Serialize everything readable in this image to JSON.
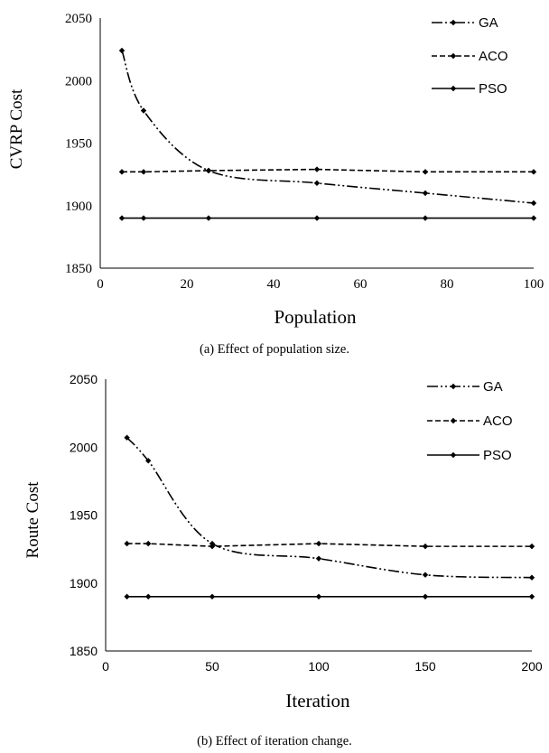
{
  "chart_data": [
    {
      "type": "line",
      "ylabel": "CVRP Cost",
      "xlabel": "Population",
      "caption": "(a) Effect of population size.",
      "xlim": [
        0,
        100
      ],
      "ylim": [
        1850,
        2050
      ],
      "xticks": [
        0,
        20,
        40,
        60,
        80,
        100
      ],
      "yticks": [
        1850,
        1900,
        1950,
        2000,
        2050
      ],
      "legend_position": "top-right",
      "series": [
        {
          "name": "GA",
          "style": "dash-dot-dot",
          "x": [
            5,
            10,
            25,
            50,
            75,
            100
          ],
          "y": [
            2024,
            1976,
            1928,
            1918,
            1910,
            1902
          ]
        },
        {
          "name": "ACO",
          "style": "dashed",
          "x": [
            5,
            10,
            25,
            50,
            75,
            100
          ],
          "y": [
            1927,
            1927,
            1928,
            1929,
            1927,
            1927
          ]
        },
        {
          "name": "PSO",
          "style": "solid",
          "x": [
            5,
            10,
            25,
            50,
            75,
            100
          ],
          "y": [
            1890,
            1890,
            1890,
            1890,
            1890,
            1890
          ]
        }
      ]
    },
    {
      "type": "line",
      "ylabel": "Route Cost",
      "xlabel": "Iteration",
      "caption": "(b) Effect of iteration change.",
      "xlim": [
        0,
        200
      ],
      "ylim": [
        1850,
        2050
      ],
      "xticks": [
        0,
        50,
        100,
        150,
        200
      ],
      "yticks": [
        1850,
        1900,
        1950,
        2000,
        2050
      ],
      "legend_position": "top-right",
      "series": [
        {
          "name": "GA",
          "style": "dash-dot-dot",
          "x": [
            10,
            20,
            50,
            100,
            150,
            200
          ],
          "y": [
            2007,
            1990,
            1929,
            1918,
            1906,
            1904
          ]
        },
        {
          "name": "ACO",
          "style": "dashed",
          "x": [
            10,
            20,
            50,
            100,
            150,
            200
          ],
          "y": [
            1929,
            1929,
            1927,
            1929,
            1927,
            1927
          ]
        },
        {
          "name": "PSO",
          "style": "solid",
          "x": [
            10,
            20,
            50,
            100,
            150,
            200
          ],
          "y": [
            1890,
            1890,
            1890,
            1890,
            1890,
            1890
          ]
        }
      ]
    }
  ]
}
